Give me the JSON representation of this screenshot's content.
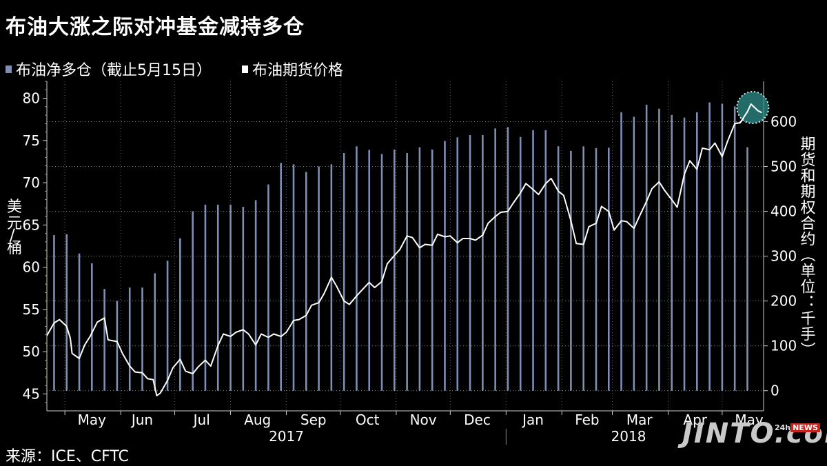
{
  "header": {
    "title": "布油大涨之际对冲基金减持多仓"
  },
  "legend": {
    "bars_label": "布油净多仓（截止5月15日）",
    "line_label": "布油期货价格",
    "bars_color": "#7f8fb3",
    "line_color": "#ffffff"
  },
  "footer": {
    "source": "来源：ICE、CFTC"
  },
  "watermark": {
    "brand": "JINTO.com",
    "badge_prefix": "24h",
    "badge": "NEWS"
  },
  "chart_data": {
    "type": "bar+line",
    "left_axis": {
      "label": "美元/桶",
      "range": [
        43,
        82
      ],
      "ticks": [
        45,
        50,
        55,
        60,
        65,
        70,
        75,
        80
      ]
    },
    "right_axis": {
      "label": "期货和期权合约（单位：千手）",
      "range": [
        -45,
        690
      ],
      "ticks": [
        0,
        100,
        200,
        300,
        400,
        500,
        600
      ]
    },
    "x_axis": {
      "range": [
        "2017-04-21",
        "2018-05-24"
      ],
      "month_labels": [
        {
          "label": "May",
          "date": "2017-05-16"
        },
        {
          "label": "Jun",
          "date": "2017-06-13"
        },
        {
          "label": "Jul",
          "date": "2017-07-16"
        },
        {
          "label": "Aug",
          "date": "2017-08-16"
        },
        {
          "label": "Sep",
          "date": "2017-09-16"
        },
        {
          "label": "Oct",
          "date": "2017-10-16"
        },
        {
          "label": "Nov",
          "date": "2017-11-16"
        },
        {
          "label": "Dec",
          "date": "2017-12-16"
        },
        {
          "label": "Jan",
          "date": "2018-01-16"
        },
        {
          "label": "Feb",
          "date": "2018-02-15"
        },
        {
          "label": "Mar",
          "date": "2018-03-16"
        },
        {
          "label": "Apr",
          "date": "2018-04-16"
        },
        {
          "label": "May",
          "date": "2018-05-16"
        }
      ],
      "year_labels": [
        {
          "label": "2017",
          "date": "2017-09-01"
        },
        {
          "label": "2018",
          "date": "2018-03-10"
        }
      ],
      "year_separator": "2018-01-01"
    },
    "grid": "dotted horizontal at right-axis ticks",
    "series": [
      {
        "name": "布油净多仓（截止5月15日）",
        "type": "bar",
        "axis": "right",
        "x": [
          "2017-04-25",
          "2017-05-02",
          "2017-05-09",
          "2017-05-16",
          "2017-05-23",
          "2017-05-30",
          "2017-06-06",
          "2017-06-13",
          "2017-06-20",
          "2017-06-27",
          "2017-07-04",
          "2017-07-11",
          "2017-07-18",
          "2017-07-25",
          "2017-08-01",
          "2017-08-08",
          "2017-08-15",
          "2017-08-22",
          "2017-08-29",
          "2017-09-05",
          "2017-09-12",
          "2017-09-19",
          "2017-09-26",
          "2017-10-03",
          "2017-10-10",
          "2017-10-17",
          "2017-10-24",
          "2017-10-31",
          "2017-11-07",
          "2017-11-14",
          "2017-11-21",
          "2017-11-28",
          "2017-12-05",
          "2017-12-12",
          "2017-12-19",
          "2017-12-26",
          "2018-01-02",
          "2018-01-09",
          "2018-01-16",
          "2018-01-23",
          "2018-01-30",
          "2018-02-06",
          "2018-02-13",
          "2018-02-20",
          "2018-02-27",
          "2018-03-06",
          "2018-03-13",
          "2018-03-20",
          "2018-03-27",
          "2018-04-03",
          "2018-04-10",
          "2018-04-17",
          "2018-04-24",
          "2018-05-01",
          "2018-05-08",
          "2018-05-15"
        ],
        "values": [
          347,
          349,
          306,
          284,
          227,
          200,
          230,
          230,
          262,
          290,
          340,
          400,
          415,
          415,
          415,
          410,
          425,
          460,
          508,
          505,
          488,
          500,
          505,
          530,
          545,
          537,
          528,
          538,
          530,
          543,
          538,
          557,
          565,
          570,
          570,
          585,
          588,
          566,
          581,
          581,
          545,
          535,
          545,
          541,
          542,
          621,
          611,
          638,
          629,
          615,
          609,
          621,
          643,
          640,
          634,
          543
        ]
      },
      {
        "name": "布油期货价格",
        "type": "line",
        "axis": "left",
        "x": [
          "2017-04-21",
          "2017-04-25",
          "2017-04-28",
          "2017-05-02",
          "2017-05-04",
          "2017-05-05",
          "2017-05-09",
          "2017-05-12",
          "2017-05-15",
          "2017-05-19",
          "2017-05-23",
          "2017-05-25",
          "2017-05-30",
          "2017-06-02",
          "2017-06-06",
          "2017-06-09",
          "2017-06-13",
          "2017-06-16",
          "2017-06-19",
          "2017-06-21",
          "2017-06-23",
          "2017-06-27",
          "2017-06-30",
          "2017-07-04",
          "2017-07-07",
          "2017-07-11",
          "2017-07-14",
          "2017-07-18",
          "2017-07-21",
          "2017-07-25",
          "2017-07-28",
          "2017-08-01",
          "2017-08-04",
          "2017-08-08",
          "2017-08-11",
          "2017-08-15",
          "2017-08-18",
          "2017-08-22",
          "2017-08-25",
          "2017-08-29",
          "2017-09-01",
          "2017-09-05",
          "2017-09-08",
          "2017-09-12",
          "2017-09-15",
          "2017-09-19",
          "2017-09-22",
          "2017-09-26",
          "2017-09-29",
          "2017-10-03",
          "2017-10-06",
          "2017-10-10",
          "2017-10-13",
          "2017-10-17",
          "2017-10-20",
          "2017-10-24",
          "2017-10-27",
          "2017-10-31",
          "2017-11-03",
          "2017-11-07",
          "2017-11-10",
          "2017-11-14",
          "2017-11-17",
          "2017-11-21",
          "2017-11-24",
          "2017-11-28",
          "2017-12-01",
          "2017-12-05",
          "2017-12-08",
          "2017-12-12",
          "2017-12-15",
          "2017-12-19",
          "2017-12-22",
          "2017-12-26",
          "2017-12-29",
          "2018-01-02",
          "2018-01-05",
          "2018-01-09",
          "2018-01-12",
          "2018-01-16",
          "2018-01-19",
          "2018-01-23",
          "2018-01-26",
          "2018-01-30",
          "2018-02-02",
          "2018-02-06",
          "2018-02-09",
          "2018-02-13",
          "2018-02-16",
          "2018-02-20",
          "2018-02-23",
          "2018-02-27",
          "2018-03-02",
          "2018-03-06",
          "2018-03-09",
          "2018-03-13",
          "2018-03-16",
          "2018-03-20",
          "2018-03-23",
          "2018-03-27",
          "2018-03-30",
          "2018-04-03",
          "2018-04-06",
          "2018-04-10",
          "2018-04-13",
          "2018-04-17",
          "2018-04-20",
          "2018-04-24",
          "2018-04-27",
          "2018-05-01",
          "2018-05-04",
          "2018-05-08",
          "2018-05-11",
          "2018-05-15",
          "2018-05-17",
          "2018-05-21",
          "2018-05-23"
        ],
        "values": [
          51.9,
          53.4,
          53.8,
          53.0,
          51.6,
          49.8,
          49.2,
          50.8,
          51.8,
          53.5,
          54.0,
          51.4,
          51.2,
          49.8,
          48.3,
          47.6,
          47.5,
          46.8,
          46.7,
          44.8,
          45.1,
          46.6,
          48.1,
          49.1,
          47.7,
          47.4,
          48.2,
          49.0,
          48.3,
          50.7,
          52.1,
          51.8,
          52.3,
          52.6,
          52.1,
          50.8,
          52.1,
          51.7,
          52.1,
          51.8,
          52.3,
          53.7,
          53.8,
          54.3,
          55.5,
          55.8,
          56.9,
          58.8,
          57.7,
          56.0,
          55.6,
          56.6,
          57.3,
          58.2,
          57.6,
          58.3,
          60.4,
          61.4,
          62.1,
          63.7,
          63.5,
          62.3,
          62.7,
          62.6,
          63.9,
          63.6,
          63.7,
          62.9,
          63.4,
          63.4,
          63.2,
          63.8,
          65.2,
          66.0,
          66.5,
          66.6,
          67.6,
          68.8,
          69.9,
          69.2,
          68.6,
          69.9,
          70.5,
          69.0,
          68.5,
          65.5,
          62.8,
          62.7,
          64.8,
          65.2,
          67.2,
          66.6,
          64.4,
          65.5,
          65.4,
          64.6,
          66.0,
          67.8,
          69.3,
          70.1,
          69.1,
          68.0,
          67.1,
          71.0,
          72.6,
          71.6,
          74.1,
          73.9,
          74.7,
          73.1,
          74.9,
          77.0,
          77.1,
          78.4,
          79.3,
          78.5,
          78.3
        ]
      }
    ],
    "annotation": {
      "type": "highlight-circle",
      "date": "2018-05-18",
      "value": 78.9
    }
  }
}
